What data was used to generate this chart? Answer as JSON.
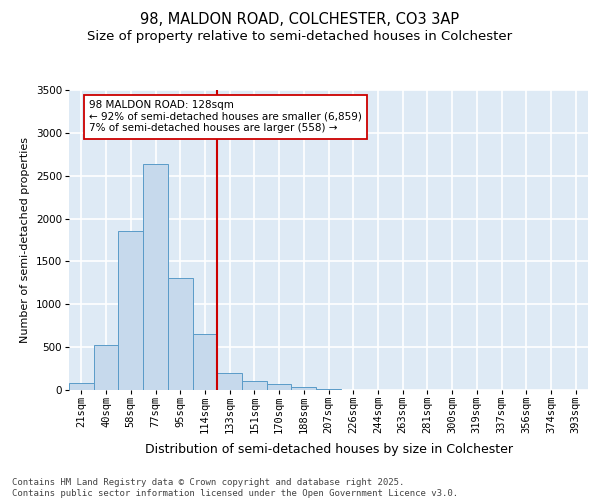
{
  "title_line1": "98, MALDON ROAD, COLCHESTER, CO3 3AP",
  "title_line2": "Size of property relative to semi-detached houses in Colchester",
  "xlabel": "Distribution of semi-detached houses by size in Colchester",
  "ylabel": "Number of semi-detached properties",
  "categories": [
    "21sqm",
    "40sqm",
    "58sqm",
    "77sqm",
    "95sqm",
    "114sqm",
    "133sqm",
    "151sqm",
    "170sqm",
    "188sqm",
    "207sqm",
    "226sqm",
    "244sqm",
    "263sqm",
    "281sqm",
    "300sqm",
    "319sqm",
    "337sqm",
    "356sqm",
    "374sqm",
    "393sqm"
  ],
  "values": [
    80,
    530,
    1850,
    2640,
    1310,
    650,
    200,
    110,
    65,
    40,
    15,
    5,
    2,
    1,
    1,
    0,
    0,
    0,
    0,
    0,
    0
  ],
  "bar_color": "#c6d9ec",
  "bar_edge_color": "#5a9bc8",
  "vline_color": "#cc0000",
  "vline_x": 5.5,
  "annotation_text": "98 MALDON ROAD: 128sqm\n← 92% of semi-detached houses are smaller (6,859)\n7% of semi-detached houses are larger (558) →",
  "annotation_box_color": "#ffffff",
  "annotation_border_color": "#cc0000",
  "ylim": [
    0,
    3500
  ],
  "yticks": [
    0,
    500,
    1000,
    1500,
    2000,
    2500,
    3000,
    3500
  ],
  "background_color": "#deeaf5",
  "grid_color": "#ffffff",
  "footer_text": "Contains HM Land Registry data © Crown copyright and database right 2025.\nContains public sector information licensed under the Open Government Licence v3.0.",
  "title_fontsize": 10.5,
  "subtitle_fontsize": 9.5,
  "ylabel_fontsize": 8,
  "xlabel_fontsize": 9,
  "tick_fontsize": 7.5,
  "annotation_fontsize": 7.5,
  "footer_fontsize": 6.5
}
